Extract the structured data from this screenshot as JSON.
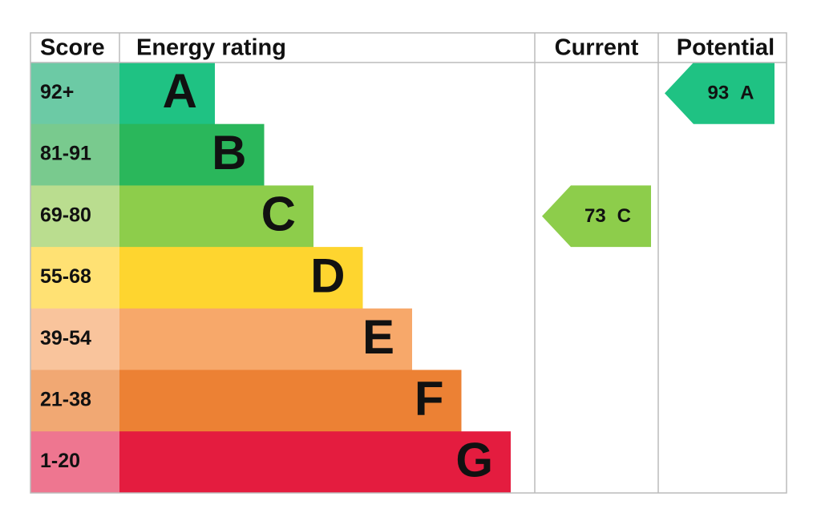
{
  "header": {
    "score": "Score",
    "energy_rating": "Energy rating",
    "current": "Current",
    "potential": "Potential"
  },
  "bands": [
    {
      "score": "92+",
      "letter": "A",
      "color": "#1fc283",
      "score_color": "#6ccaa5"
    },
    {
      "score": "81-91",
      "letter": "B",
      "color": "#2ab75b",
      "score_color": "#79ca8e"
    },
    {
      "score": "69-80",
      "letter": "C",
      "color": "#8dcd4b",
      "score_color": "#badd8f"
    },
    {
      "score": "55-68",
      "letter": "D",
      "color": "#fed52f",
      "score_color": "#ffe173"
    },
    {
      "score": "39-54",
      "letter": "E",
      "color": "#f7a86a",
      "score_color": "#f9c49c"
    },
    {
      "score": "21-38",
      "letter": "F",
      "color": "#ec8134",
      "score_color": "#f1a873"
    },
    {
      "score": "1-20",
      "letter": "G",
      "color": "#e41c3f",
      "score_color": "#ee7690"
    }
  ],
  "current": {
    "value": 73,
    "letter": "C"
  },
  "potential": {
    "value": 93,
    "letter": "A"
  }
}
